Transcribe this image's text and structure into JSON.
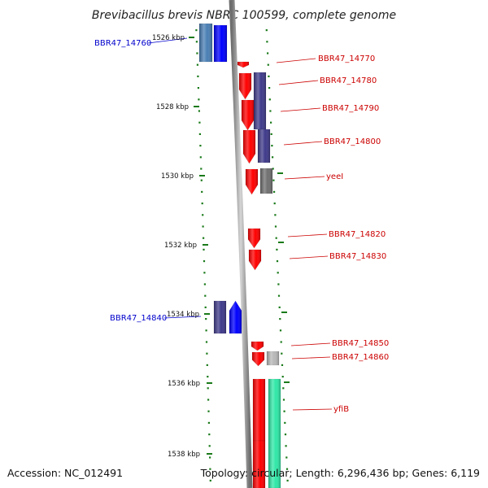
{
  "title": "Brevibacillus brevis NBRC 100599, complete genome",
  "footer": {
    "accession": "Accession: NC_012491",
    "topology": "Topology: circular; Length: 6,296,436 bp; Genes: 6,119"
  },
  "colors": {
    "left_label": "#0000cc",
    "right_label": "#cc0000",
    "tick": "#1a7a1a",
    "backbone": "#999999",
    "red": "#ff0000",
    "blue": "#0000ff",
    "navy": "#3f3a8a",
    "steelblue": "#4a7fb5",
    "gray": "#707070",
    "lightgray": "#b8b8b8",
    "teal": "#30e8a8"
  },
  "scale": {
    "ticks": [
      "1526 kbp",
      "1528 kbp",
      "1530 kbp",
      "1532 kbp",
      "1534 kbp",
      "1536 kbp",
      "1538 kbp"
    ]
  },
  "labels": {
    "left": [
      "BBR47_14760",
      "BBR47_14840"
    ],
    "right": [
      "BBR47_14770",
      "BBR47_14780",
      "BBR47_14790",
      "BBR47_14800",
      "yeeI",
      "BBR47_14820",
      "BBR47_14830",
      "BBR47_14850",
      "BBR47_14860",
      "yfiB"
    ]
  }
}
